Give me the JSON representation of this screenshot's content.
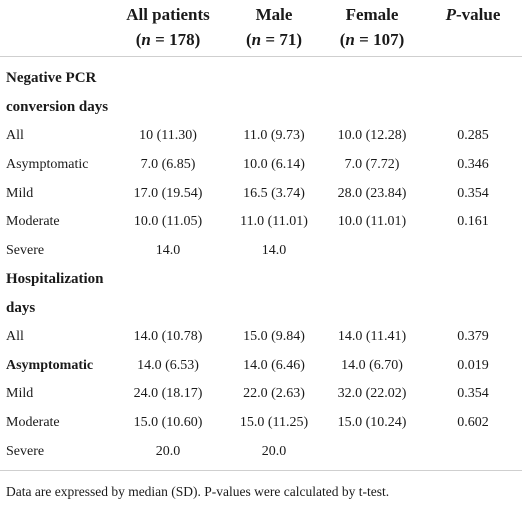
{
  "header": {
    "col_all": "All patients",
    "n_all": "178",
    "col_male": "Male",
    "n_male": "71",
    "col_female": "Female",
    "n_female": "107",
    "col_p_letter": "P",
    "col_p_rest": "-value",
    "n_symbol": "n",
    "eq": " = ",
    "open": "(",
    "close": ")"
  },
  "sections": [
    {
      "title_line1": "Negative PCR",
      "title_line2": "conversion days",
      "rows": [
        {
          "label": "All",
          "all": "10 (11.30)",
          "male": "11.0 (9.73)",
          "female": "10.0 (12.28)",
          "p": "0.285"
        },
        {
          "label": "Asymptomatic",
          "all": "7.0 (6.85)",
          "male": "10.0 (6.14)",
          "female": "7.0 (7.72)",
          "p": "0.346"
        },
        {
          "label": "Mild",
          "all": "17.0 (19.54)",
          "male": "16.5 (3.74)",
          "female": "28.0 (23.84)",
          "p": "0.354"
        },
        {
          "label": "Moderate",
          "all": "10.0 (11.05)",
          "male": "11.0 (11.01)",
          "female": "10.0 (11.01)",
          "p": "0.161"
        },
        {
          "label": "Severe",
          "all": "14.0",
          "male": "14.0",
          "female": "",
          "p": ""
        }
      ]
    },
    {
      "title_line1": "Hospitalization",
      "title_line2": "days",
      "rows": [
        {
          "label": "All",
          "all": "14.0 (10.78)",
          "male": "15.0 (9.84)",
          "female": "14.0 (11.41)",
          "p": "0.379"
        },
        {
          "label": "Asymptomatic",
          "all": "14.0 (6.53)",
          "male": "14.0 (6.46)",
          "female": "14.0 (6.70)",
          "p": "0.019"
        },
        {
          "label": "Mild",
          "all": "24.0 (18.17)",
          "male": "22.0 (2.63)",
          "female": "32.0 (22.02)",
          "p": "0.354"
        },
        {
          "label": "Moderate",
          "all": "15.0 (10.60)",
          "male": "15.0 (11.25)",
          "female": "15.0 (10.24)",
          "p": "0.602"
        },
        {
          "label": "Severe",
          "all": "20.0",
          "male": "20.0",
          "female": "",
          "p": ""
        }
      ]
    }
  ],
  "footnote": "Data are expressed by median (SD). P-values were calculated by t-test."
}
